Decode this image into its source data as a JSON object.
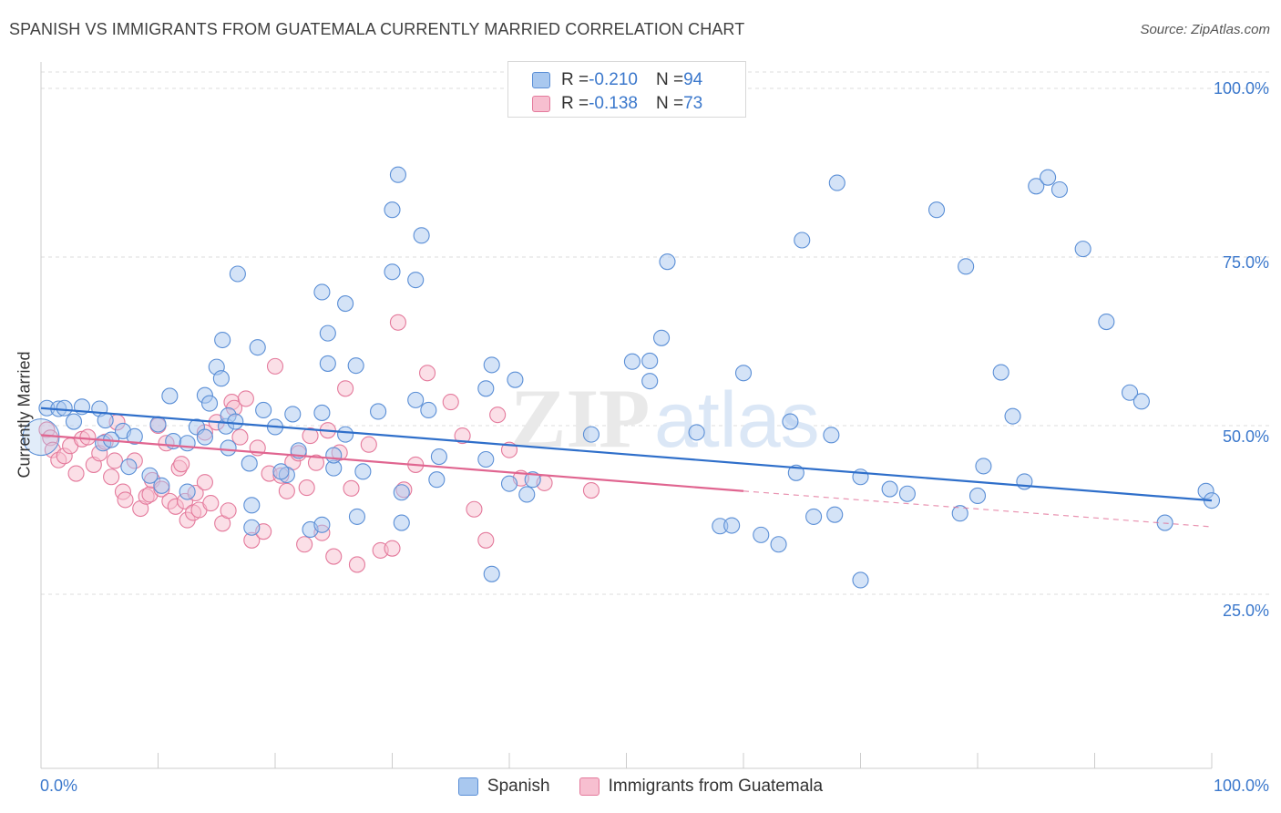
{
  "title": "SPANISH VS IMMIGRANTS FROM GUATEMALA CURRENTLY MARRIED CORRELATION CHART",
  "source": "Source: ZipAtlas.com",
  "watermark": {
    "zip": "ZIP",
    "atlas": "atlas"
  },
  "legend": {
    "rows": [
      {
        "r_label": "R = ",
        "r_value": "-0.210",
        "n_label": "N = ",
        "n_value": "94"
      },
      {
        "r_label": "R = ",
        "r_value": "-0.138",
        "n_label": "N = ",
        "n_value": "73"
      }
    ]
  },
  "colors": {
    "spanish_fill": "#a9c8ef",
    "spanish_stroke": "#5b8fd6",
    "spanish_line": "#2f6fca",
    "guatemala_fill": "#f7bfd0",
    "guatemala_stroke": "#e47a9c",
    "guatemala_line": "#e06590",
    "grid": "#dddddd",
    "axis_text": "#3b78cc"
  },
  "chart_data": {
    "type": "scatter",
    "title": "SPANISH VS IMMIGRANTS FROM GUATEMALA CURRENTLY MARRIED CORRELATION CHART",
    "xlabel": "",
    "ylabel": "Currently Married",
    "xlim": [
      0,
      100
    ],
    "ylim": [
      0,
      105
    ],
    "x_tick_labels": [
      "0.0%",
      "100.0%"
    ],
    "y_tick_labels": [
      "25.0%",
      "50.0%",
      "75.0%",
      "100.0%"
    ],
    "y_ticks": [
      25,
      50,
      75,
      100
    ],
    "grid": true,
    "legend_position": "top-center",
    "series": [
      {
        "name": "Spanish",
        "r": -0.21,
        "n": 94,
        "trend": {
          "x": [
            0,
            100
          ],
          "y": [
            52.6,
            38.9
          ]
        },
        "points": [
          [
            0.5,
            52.6
          ],
          [
            1.5,
            52.5
          ],
          [
            2,
            52.6
          ],
          [
            3.5,
            52.8
          ],
          [
            5,
            52.5
          ],
          [
            2.8,
            50.6
          ],
          [
            5.5,
            50.8
          ],
          [
            7,
            49.2
          ],
          [
            5.3,
            47.4
          ],
          [
            6,
            47.9
          ],
          [
            8,
            48.4
          ],
          [
            7.5,
            43.9
          ],
          [
            9.3,
            42.6
          ],
          [
            10,
            50.2
          ],
          [
            10.3,
            41.1
          ],
          [
            11,
            54.4
          ],
          [
            11.3,
            47.7
          ],
          [
            12.5,
            40.2
          ],
          [
            12.5,
            47.4
          ],
          [
            13.3,
            49.8
          ],
          [
            14,
            48.3
          ],
          [
            14,
            54.5
          ],
          [
            14.4,
            53.3
          ],
          [
            15,
            58.7
          ],
          [
            15.4,
            57
          ],
          [
            15.5,
            62.7
          ],
          [
            15.8,
            49.9
          ],
          [
            16,
            51.5
          ],
          [
            16,
            46.7
          ],
          [
            16.6,
            50.6
          ],
          [
            17.8,
            44.4
          ],
          [
            18,
            38.2
          ],
          [
            16.8,
            72.5
          ],
          [
            18.5,
            61.6
          ],
          [
            19,
            52.3
          ],
          [
            20,
            49.8
          ],
          [
            21,
            42.7
          ],
          [
            21.5,
            51.7
          ],
          [
            22,
            46.3
          ],
          [
            23,
            34.6
          ],
          [
            24,
            51.9
          ],
          [
            24.5,
            63.7
          ],
          [
            25,
            43.7
          ],
          [
            24,
            35.3
          ],
          [
            25,
            45.6
          ],
          [
            18,
            34.9
          ],
          [
            20.5,
            43.2
          ],
          [
            24,
            69.8
          ],
          [
            24.5,
            59.2
          ],
          [
            26,
            68.1
          ],
          [
            26,
            48.7
          ],
          [
            26.9,
            58.9
          ],
          [
            27,
            36.5
          ],
          [
            27.5,
            43.2
          ],
          [
            28.8,
            52.1
          ],
          [
            30,
            72.8
          ],
          [
            30,
            82
          ],
          [
            30.8,
            40.1
          ],
          [
            30.5,
            87.2
          ],
          [
            30.8,
            35.6
          ],
          [
            32,
            53.8
          ],
          [
            32,
            71.6
          ],
          [
            32.5,
            78.2
          ],
          [
            33.1,
            52.3
          ],
          [
            33.8,
            42
          ],
          [
            34,
            45.4
          ],
          [
            38.5,
            59
          ],
          [
            40,
            41.4
          ],
          [
            42,
            42
          ],
          [
            41.5,
            39.8
          ],
          [
            40.5,
            56.8
          ],
          [
            38,
            55.5
          ],
          [
            38.5,
            28
          ],
          [
            38,
            45
          ],
          [
            47,
            48.7
          ],
          [
            50.5,
            59.5
          ],
          [
            52,
            59.6
          ],
          [
            52,
            56.6
          ],
          [
            53,
            63
          ],
          [
            53.5,
            74.3
          ],
          [
            56,
            49
          ],
          [
            58,
            35.1
          ],
          [
            59,
            35.2
          ],
          [
            60,
            57.8
          ],
          [
            61.5,
            33.8
          ],
          [
            63,
            32.4
          ],
          [
            64,
            50.6
          ],
          [
            64.5,
            43
          ],
          [
            65,
            77.5
          ],
          [
            66,
            36.5
          ],
          [
            67.5,
            48.6
          ],
          [
            67.8,
            36.8
          ],
          [
            68,
            86
          ],
          [
            70,
            27.1
          ],
          [
            70,
            42.4
          ],
          [
            72.5,
            40.6
          ],
          [
            74,
            39.9
          ],
          [
            78.5,
            37
          ],
          [
            76.5,
            82
          ],
          [
            79,
            73.6
          ],
          [
            80,
            39.6
          ],
          [
            80.5,
            44
          ],
          [
            82,
            57.9
          ],
          [
            83,
            51.4
          ],
          [
            84,
            41.7
          ],
          [
            85,
            85.5
          ],
          [
            86,
            86.8
          ],
          [
            87,
            85
          ],
          [
            89,
            76.2
          ],
          [
            91,
            65.4
          ],
          [
            93,
            54.9
          ],
          [
            94,
            53.6
          ],
          [
            96,
            35.6
          ],
          [
            99.5,
            40.3
          ],
          [
            100,
            38.9
          ]
        ]
      },
      {
        "name": "Immigrants from Guatemala",
        "r": -0.138,
        "n": 73,
        "trend": {
          "x": [
            0,
            60
          ],
          "y": [
            48.6,
            40.3
          ]
        },
        "trend_dashed": {
          "x": [
            60,
            100
          ],
          "y": [
            40.3,
            35.0
          ]
        },
        "points": [
          [
            0.5,
            49.4
          ],
          [
            0.8,
            48.2
          ],
          [
            1,
            46.4
          ],
          [
            1.5,
            44.9
          ],
          [
            2,
            45.5
          ],
          [
            2.5,
            47
          ],
          [
            3,
            42.9
          ],
          [
            3.5,
            48
          ],
          [
            4,
            48.3
          ],
          [
            4.5,
            44.2
          ],
          [
            5,
            45.9
          ],
          [
            5.5,
            47.6
          ],
          [
            6,
            42.4
          ],
          [
            6.3,
            44.8
          ],
          [
            6.5,
            50.5
          ],
          [
            7,
            40.2
          ],
          [
            7.2,
            39
          ],
          [
            8,
            44.8
          ],
          [
            8.5,
            37.7
          ],
          [
            9,
            39.5
          ],
          [
            9.3,
            39.8
          ],
          [
            9.5,
            41.9
          ],
          [
            10,
            50
          ],
          [
            10.3,
            40.6
          ],
          [
            10.7,
            47.4
          ],
          [
            11,
            38.8
          ],
          [
            11.5,
            38
          ],
          [
            11.8,
            43.7
          ],
          [
            12,
            44.3
          ],
          [
            12.3,
            38.8
          ],
          [
            12.5,
            36
          ],
          [
            13,
            37.1
          ],
          [
            13.2,
            40
          ],
          [
            13.5,
            37.5
          ],
          [
            14,
            49
          ],
          [
            14,
            41.6
          ],
          [
            14.5,
            38.5
          ],
          [
            15,
            50.5
          ],
          [
            15.5,
            35.5
          ],
          [
            16,
            37.4
          ],
          [
            16.3,
            53.5
          ],
          [
            16.5,
            52.6
          ],
          [
            17,
            48.3
          ],
          [
            17.5,
            54
          ],
          [
            18,
            33
          ],
          [
            18.5,
            46.7
          ],
          [
            19,
            34.3
          ],
          [
            19.5,
            42.9
          ],
          [
            20,
            58.8
          ],
          [
            20.5,
            42.6
          ],
          [
            21,
            40.3
          ],
          [
            21.5,
            44.6
          ],
          [
            22,
            45.9
          ],
          [
            22.5,
            32.4
          ],
          [
            22.7,
            40.8
          ],
          [
            23,
            48.5
          ],
          [
            23.5,
            44.5
          ],
          [
            24,
            34.1
          ],
          [
            24.5,
            49.3
          ],
          [
            25,
            30.6
          ],
          [
            25.5,
            46
          ],
          [
            26,
            55.5
          ],
          [
            26.5,
            40.7
          ],
          [
            27,
            29.4
          ],
          [
            28,
            47.2
          ],
          [
            29,
            31.5
          ],
          [
            30,
            31.8
          ],
          [
            30.5,
            65.3
          ],
          [
            31,
            40.5
          ],
          [
            32,
            44.2
          ],
          [
            33,
            57.8
          ],
          [
            35,
            53.5
          ],
          [
            36,
            48.5
          ],
          [
            37,
            37.6
          ],
          [
            38,
            33
          ],
          [
            39,
            51.6
          ],
          [
            40,
            46.4
          ],
          [
            41,
            42.2
          ],
          [
            43,
            41.5
          ],
          [
            47,
            40.4
          ]
        ]
      }
    ]
  }
}
